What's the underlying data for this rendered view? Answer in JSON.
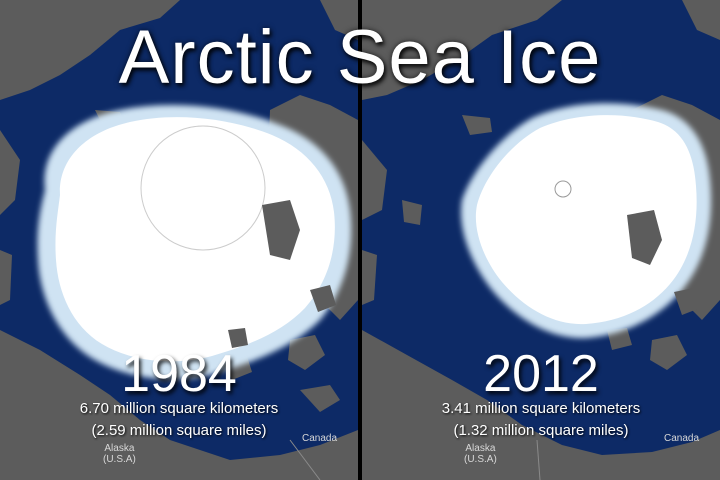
{
  "title": "Arctic Sea Ice",
  "colors": {
    "ocean": "#0d2a66",
    "land": "#5c5c5c",
    "ice": "#ffffff",
    "ice_edge": "#cfe3f3",
    "divider": "#000000"
  },
  "panels": [
    {
      "year": "1984",
      "area_km": "6.70 million square kilometers",
      "area_mi": "(2.59 million square miles)",
      "label_alaska": "Alaska",
      "label_usa": "(U.S.A)",
      "label_canada": "Canada"
    },
    {
      "year": "2012",
      "area_km": "3.41 million square kilometers",
      "area_mi": "(1.32 million square miles)",
      "label_alaska": "Alaska",
      "label_usa": "(U.S.A)",
      "label_canada": "Canada"
    }
  ]
}
